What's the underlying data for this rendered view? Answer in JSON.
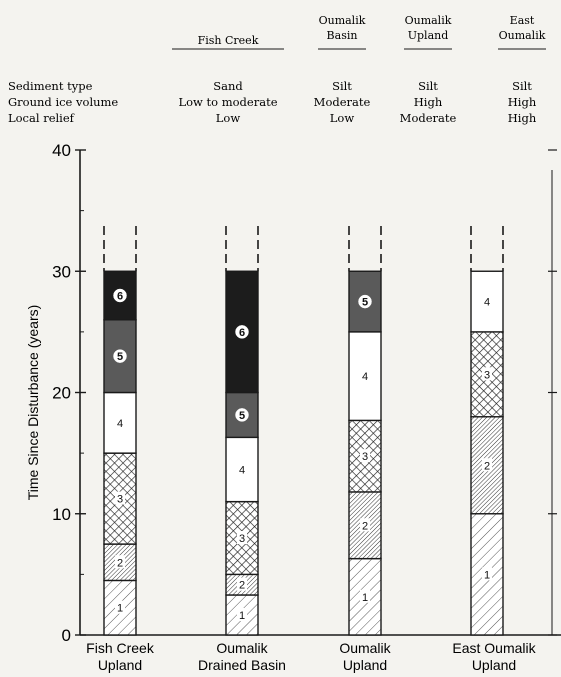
{
  "site_headers": [
    {
      "lines": [
        "Fish Creek"
      ]
    },
    {
      "lines": [
        "Oumalik",
        "Basin"
      ]
    },
    {
      "lines": [
        "Oumalik",
        "Upland"
      ]
    },
    {
      "lines": [
        "East",
        "Oumalik"
      ]
    }
  ],
  "properties": [
    {
      "label": "Sediment type",
      "values": [
        "Sand",
        "Silt",
        "Silt",
        "Silt"
      ]
    },
    {
      "label": "Ground ice volume",
      "values": [
        "Low to moderate",
        "Moderate",
        "High",
        "High"
      ]
    },
    {
      "label": "Local relief",
      "values": [
        "Low",
        "Low",
        "Moderate",
        "High"
      ]
    }
  ],
  "chart_data": {
    "type": "bar",
    "subtype": "stacked",
    "ylabel": "Time Since Disturbance (years)",
    "ylim": [
      0,
      40
    ],
    "yticks": [
      0,
      10,
      20,
      30,
      40
    ],
    "grid": false,
    "categories": [
      [
        "Fish Creek",
        "Upland"
      ],
      [
        "Oumalik",
        "Drained Basin"
      ],
      [
        "Oumalik",
        "Upland"
      ],
      [
        "East Oumalik",
        "Upland"
      ]
    ],
    "columns": [
      {
        "stages": [
          {
            "label": "1",
            "from": 0,
            "to": 4.5,
            "pattern": "diag-light"
          },
          {
            "label": "2",
            "from": 4.5,
            "to": 7.5,
            "pattern": "diag-dense"
          },
          {
            "label": "3",
            "from": 7.5,
            "to": 15,
            "pattern": "crosshatch"
          },
          {
            "label": "4",
            "from": 15,
            "to": 20,
            "pattern": "white"
          },
          {
            "label": "5",
            "from": 20,
            "to": 26,
            "pattern": "dark-gray"
          },
          {
            "label": "6",
            "from": 26,
            "to": 30,
            "pattern": "black"
          }
        ]
      },
      {
        "stages": [
          {
            "label": "1",
            "from": 0,
            "to": 3.3,
            "pattern": "diag-light"
          },
          {
            "label": "2",
            "from": 3.3,
            "to": 5,
            "pattern": "diag-dense"
          },
          {
            "label": "3",
            "from": 5,
            "to": 11,
            "pattern": "crosshatch"
          },
          {
            "label": "4",
            "from": 11,
            "to": 16.3,
            "pattern": "white"
          },
          {
            "label": "5",
            "from": 16.3,
            "to": 20,
            "pattern": "dark-gray"
          },
          {
            "label": "6",
            "from": 20,
            "to": 30,
            "pattern": "black"
          }
        ]
      },
      {
        "stages": [
          {
            "label": "1",
            "from": 0,
            "to": 6.3,
            "pattern": "diag-light"
          },
          {
            "label": "2",
            "from": 6.3,
            "to": 11.8,
            "pattern": "diag-dense"
          },
          {
            "label": "3",
            "from": 11.8,
            "to": 17.7,
            "pattern": "crosshatch"
          },
          {
            "label": "4",
            "from": 17.7,
            "to": 25,
            "pattern": "white"
          },
          {
            "label": "5",
            "from": 25,
            "to": 30,
            "pattern": "dark-gray"
          }
        ]
      },
      {
        "stages": [
          {
            "label": "1",
            "from": 0,
            "to": 10,
            "pattern": "diag-light"
          },
          {
            "label": "2",
            "from": 10,
            "to": 18,
            "pattern": "diag-dense"
          },
          {
            "label": "3",
            "from": 18,
            "to": 25,
            "pattern": "crosshatch"
          },
          {
            "label": "4",
            "from": 25,
            "to": 30,
            "pattern": "white"
          }
        ]
      }
    ],
    "colors": {
      "black": "#1c1c1c",
      "dark_gray": "#5a5a5a",
      "white": "#ffffff",
      "ink": "#1a1a1a"
    }
  }
}
